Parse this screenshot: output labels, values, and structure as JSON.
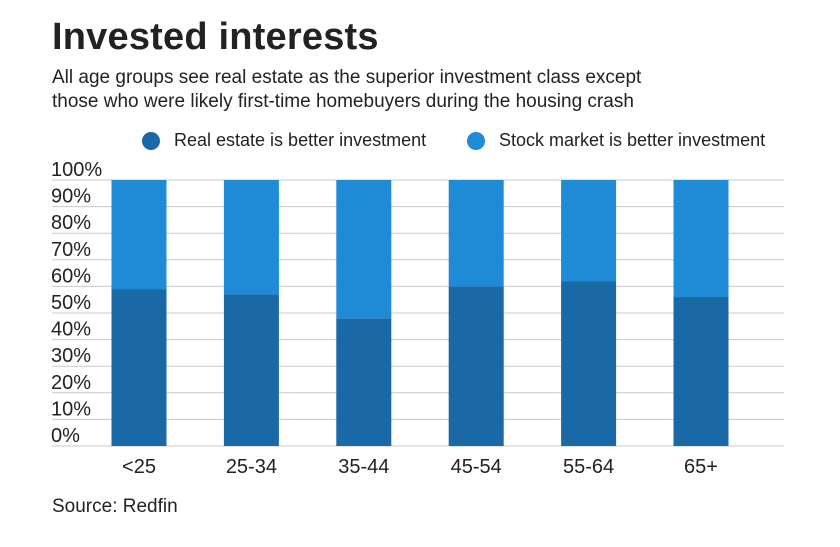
{
  "header": {
    "title": "Invested interests",
    "subtitle_line1": "All age groups see real estate as the superior investment class except",
    "subtitle_line2": "those who were likely first-time homebuyers during the housing crash"
  },
  "footer": {
    "source": "Source: Redfin"
  },
  "colors": {
    "real_estate": "#1a68a5",
    "stock_market": "#1f8ad6",
    "grid": "#c8c8c8",
    "text": "#222222"
  },
  "chart_data": {
    "type": "bar",
    "stacked": true,
    "categories": [
      "<25",
      "25-34",
      "35-44",
      "45-54",
      "55-64",
      "65+"
    ],
    "series": [
      {
        "name": "Real estate is better investment",
        "values": [
          59,
          57,
          48,
          60,
          62,
          56
        ]
      },
      {
        "name": "Stock market is better investment",
        "values": [
          41,
          43,
          52,
          40,
          38,
          44
        ]
      }
    ],
    "ytick_labels": [
      "100%",
      "90%",
      "80%",
      "70%",
      "60%",
      "50%",
      "40%",
      "30%",
      "20%",
      "10%",
      "0%"
    ],
    "ylim": [
      0,
      100
    ],
    "grid": true,
    "legend_position": "top"
  }
}
